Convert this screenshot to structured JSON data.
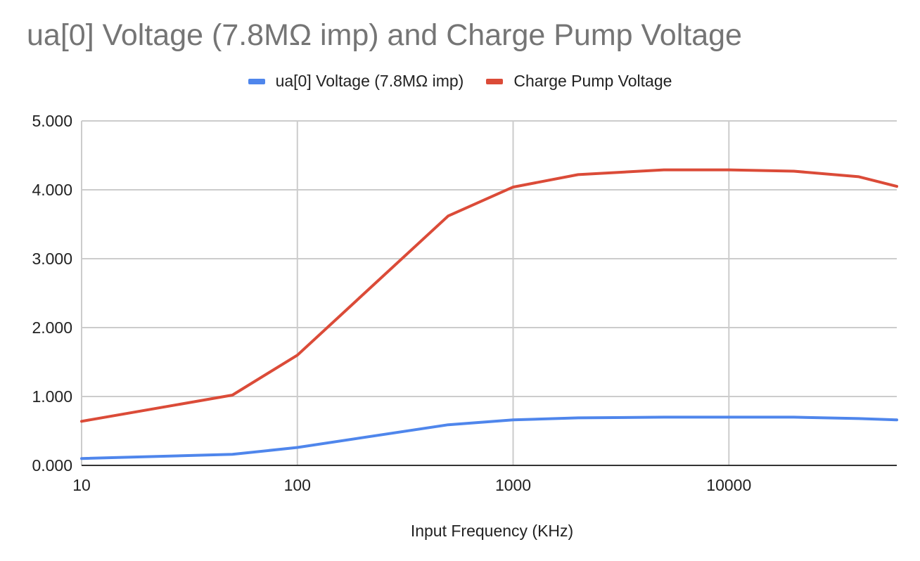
{
  "chart_data": {
    "type": "line",
    "title": "ua[0] Voltage (7.8MΩ imp) and Charge Pump Voltage",
    "xlabel": "Input Frequency (KHz)",
    "ylabel": "",
    "x_scale": "log",
    "xlim": [
      10,
      60000
    ],
    "ylim": [
      0,
      5
    ],
    "x_ticks": [
      "10",
      "100",
      "1000",
      "10000"
    ],
    "y_ticks": [
      "0.000",
      "1.000",
      "2.000",
      "3.000",
      "4.000",
      "5.000"
    ],
    "grid": true,
    "legend_position": "top-center",
    "x": [
      10,
      50,
      100,
      500,
      1000,
      2000,
      5000,
      10000,
      20000,
      40000,
      60000
    ],
    "series": [
      {
        "name": "ua[0] Voltage (7.8MΩ imp)",
        "color": "#4f86ec",
        "values": [
          0.1,
          0.16,
          0.26,
          0.59,
          0.66,
          0.69,
          0.7,
          0.7,
          0.7,
          0.68,
          0.66
        ]
      },
      {
        "name": "Charge Pump Voltage",
        "color": "#db4b38",
        "values": [
          0.64,
          1.02,
          1.6,
          3.62,
          4.04,
          4.22,
          4.29,
          4.29,
          4.27,
          4.19,
          4.05
        ]
      }
    ]
  }
}
